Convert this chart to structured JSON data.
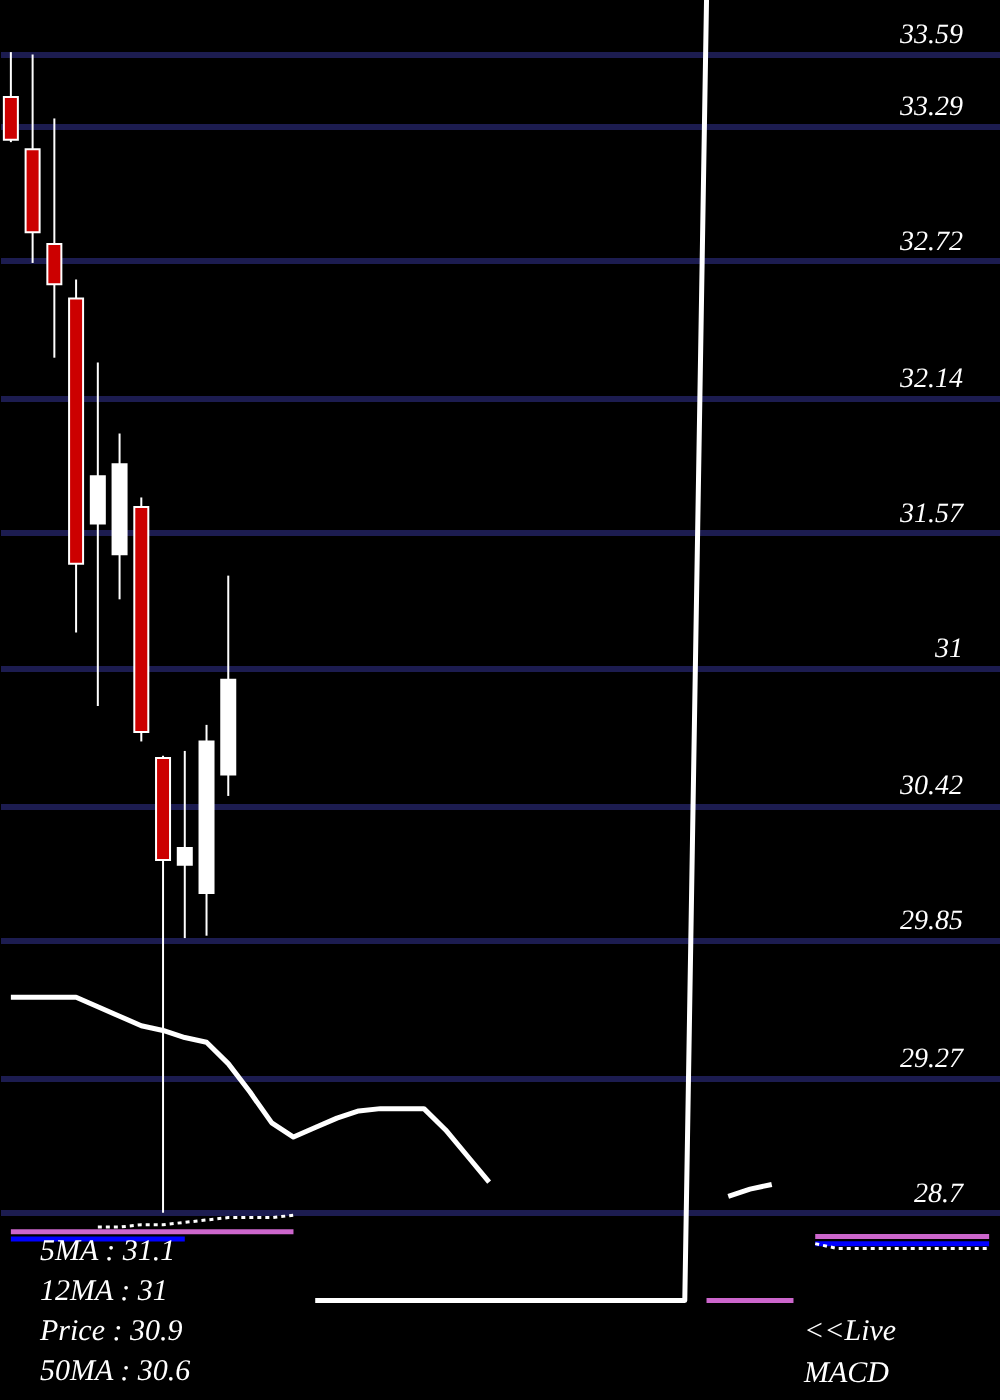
{
  "chart_data": {
    "type": "candlestick",
    "categories": [
      null,
      null,
      null,
      null,
      null,
      null,
      null,
      null,
      null,
      null,
      null,
      null,
      null,
      null,
      null,
      null,
      null,
      null,
      null,
      null,
      null,
      null,
      null,
      null,
      null,
      null,
      null,
      null,
      null,
      null,
      null,
      null,
      null,
      null,
      null,
      null,
      null,
      null,
      null,
      null,
      null,
      null,
      null,
      null,
      null,
      null
    ],
    "ohlc": [
      [
        33.41,
        33.6,
        33.22,
        33.23
      ],
      [
        33.19,
        33.59,
        32.71,
        32.84
      ],
      [
        32.79,
        33.32,
        32.31,
        32.62
      ],
      [
        32.56,
        32.64,
        31.15,
        31.44
      ],
      [
        31.61,
        32.29,
        30.84,
        31.81
      ],
      [
        31.48,
        31.99,
        31.29,
        31.86
      ],
      [
        31.68,
        31.72,
        30.69,
        30.73
      ],
      [
        30.62,
        30.63,
        28.7,
        30.19
      ],
      [
        30.17,
        30.65,
        29.86,
        30.24
      ],
      [
        30.05,
        30.76,
        29.87,
        30.69
      ],
      [
        30.55,
        31.39,
        30.46,
        30.95
      ],
      null,
      null,
      null,
      null,
      null,
      null,
      null,
      null,
      null,
      null,
      null,
      null,
      null,
      null,
      null,
      null,
      null,
      null,
      null,
      null,
      null,
      null,
      null,
      null,
      null,
      null,
      null,
      null,
      null,
      null,
      null,
      null,
      null,
      null,
      null
    ],
    "colors": [
      "#cc0000",
      "#cc0000",
      "#cc0000",
      "#cc0000",
      "#ffffff",
      "#ffffff",
      "#cc0000",
      "#cc0000",
      "#ffffff",
      "#ffffff",
      "#ffffff",
      null,
      null,
      null,
      null,
      null,
      null,
      null,
      null,
      null,
      null,
      null,
      null,
      null,
      null,
      null,
      null,
      null,
      null,
      null,
      null,
      null,
      null,
      null,
      null,
      null,
      null,
      null,
      null,
      null,
      null,
      null,
      null,
      null,
      null,
      null
    ],
    "series": [
      {
        "type": "line",
        "color": "#ffffff",
        "values": [
          29.61,
          29.61,
          29.61,
          29.61,
          29.57,
          29.53,
          29.49,
          29.47,
          29.44,
          29.42,
          29.33,
          29.21,
          29.08,
          29.02,
          29.06,
          29.1,
          29.13,
          29.14,
          29.14,
          29.14,
          29.05,
          28.94,
          28.83,
          null,
          null,
          null,
          null,
          null,
          null,
          null,
          null,
          null,
          null,
          28.77,
          28.8,
          28.82,
          null,
          null,
          null,
          null,
          null,
          null,
          null,
          null,
          null,
          null
        ]
      },
      {
        "type": "line",
        "color": "#ffffff",
        "values": [
          null,
          null,
          null,
          null,
          null,
          null,
          null,
          null,
          null,
          null,
          null,
          null,
          null,
          null,
          28.33,
          28.33,
          28.33,
          28.33,
          28.33,
          28.33,
          28.33,
          28.33,
          28.33,
          28.33,
          28.33,
          28.33,
          28.33,
          28.33,
          28.33,
          28.33,
          28.33,
          28.33,
          33.82,
          null,
          null,
          null,
          null,
          null,
          null,
          null,
          null,
          null,
          null,
          null,
          null,
          null
        ]
      },
      {
        "type": "line",
        "color": "#cc66cc",
        "values": [
          null,
          null,
          null,
          null,
          null,
          null,
          null,
          null,
          null,
          null,
          null,
          null,
          null,
          null,
          null,
          null,
          null,
          null,
          null,
          null,
          null,
          null,
          null,
          null,
          null,
          null,
          null,
          null,
          null,
          null,
          null,
          null,
          28.33,
          28.33,
          28.33,
          28.33,
          28.33,
          null,
          null,
          null,
          null,
          null,
          null,
          null,
          null,
          null
        ]
      },
      {
        "type": "line",
        "color": "#cc66cc",
        "values": [
          28.62,
          28.62,
          28.62,
          28.62,
          28.62,
          28.62,
          28.62,
          28.62,
          28.62,
          28.62,
          28.62,
          28.62,
          28.62,
          28.62,
          null,
          null,
          null,
          null,
          null,
          null,
          null,
          null,
          null,
          null,
          null,
          null,
          null,
          null,
          null,
          null,
          null,
          null,
          null,
          null,
          null,
          null,
          null,
          28.6,
          28.6,
          28.6,
          28.6,
          28.6,
          28.6,
          28.6,
          28.6,
          28.6
        ]
      },
      {
        "type": "line",
        "color": "#0000ff",
        "values": [
          28.59,
          28.59,
          28.59,
          28.59,
          28.59,
          28.59,
          28.59,
          28.59,
          28.59,
          null,
          null,
          null,
          null,
          null,
          null,
          null,
          null,
          null,
          null,
          null,
          null,
          null,
          null,
          null,
          null,
          null,
          null,
          null,
          null,
          null,
          null,
          null,
          null,
          null,
          null,
          null,
          null,
          28.57,
          28.57,
          28.57,
          28.57,
          28.57,
          28.57,
          28.57,
          28.57,
          28.57
        ]
      },
      {
        "type": "line",
        "color": "#ffffff",
        "line_style": "dotted",
        "values": [
          null,
          null,
          null,
          null,
          28.64,
          28.64,
          28.65,
          28.65,
          28.66,
          28.67,
          28.68,
          28.68,
          28.68,
          28.69,
          null,
          null,
          null,
          null,
          null,
          null,
          null,
          null,
          null,
          null,
          null,
          null,
          null,
          null,
          null,
          null,
          null,
          null,
          null,
          null,
          null,
          null,
          null,
          28.57,
          28.55,
          28.55,
          28.55,
          28.55,
          28.55,
          28.55,
          28.55,
          28.55
        ]
      }
    ],
    "ylim": [
      27.91,
      33.82
    ],
    "yticks": [
      33.59,
      33.29,
      32.72,
      32.14,
      31.57,
      31,
      30.42,
      29.85,
      29.27,
      28.7
    ],
    "grid": "y",
    "tick_labels": "y",
    "annotations": [
      "5MA : 31.1",
      "12MA : 31",
      "Price   : 30.9",
      "50MA : 30.6",
      "<<Live",
      "MACD"
    ]
  }
}
